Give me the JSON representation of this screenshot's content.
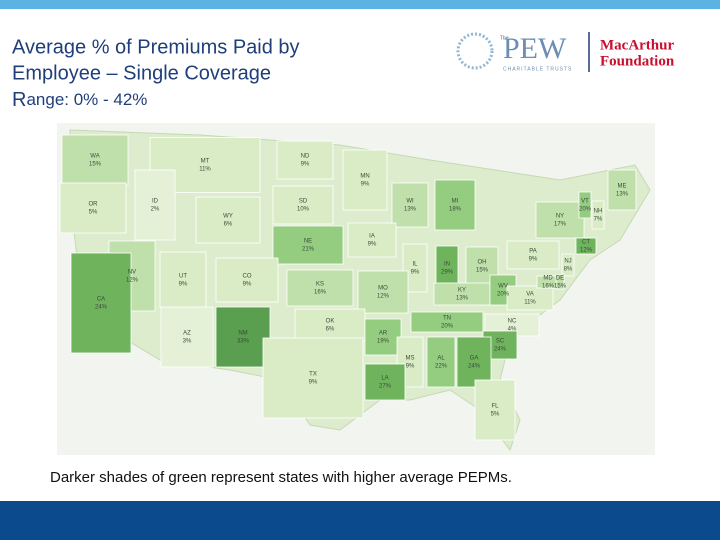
{
  "header": {
    "title_line1": "Average % of Premiums Paid by",
    "title_line2": "Employee – Single Coverage",
    "range_prefix": "R",
    "range_rest": "ange: ",
    "range_values": "0% - 42%",
    "logos": {
      "pew_small": "The",
      "pew": "PEW",
      "pew_sub": "CHARITABLE TRUSTS",
      "macarthur": "MacArthur",
      "foundation": "Foundation"
    }
  },
  "map": {
    "states": [
      {
        "abbr": "WA",
        "value": "15%",
        "color": "#bfe0ab"
      },
      {
        "abbr": "MT",
        "value": "11%",
        "color": "#d9ecc6"
      },
      {
        "abbr": "OR",
        "value": "5%",
        "color": "#d9ecc6"
      },
      {
        "abbr": "ID",
        "value": "2%",
        "color": "#e4f1d6"
      },
      {
        "abbr": "WY",
        "value": "6%",
        "color": "#d9ecc6"
      },
      {
        "abbr": "ND",
        "value": "9%",
        "color": "#d9ecc6"
      },
      {
        "abbr": "SD",
        "value": "10%",
        "color": "#d9ecc6"
      },
      {
        "abbr": "MN",
        "value": "9%",
        "color": "#d9ecc6"
      },
      {
        "abbr": "WI",
        "value": "13%",
        "color": "#bfe0ab"
      },
      {
        "abbr": "MI",
        "value": "18%",
        "color": "#94cc80"
      },
      {
        "abbr": "NE",
        "value": "21%",
        "color": "#94cc80"
      },
      {
        "abbr": "IA",
        "value": "9%",
        "color": "#d9ecc6"
      },
      {
        "abbr": "IL",
        "value": "9%",
        "color": "#d9ecc6"
      },
      {
        "abbr": "IN",
        "value": "29%",
        "color": "#6fb35d"
      },
      {
        "abbr": "OH",
        "value": "15%",
        "color": "#bfe0ab"
      },
      {
        "abbr": "NV",
        "value": "12%",
        "color": "#bfe0ab"
      },
      {
        "abbr": "UT",
        "value": "9%",
        "color": "#d9ecc6"
      },
      {
        "abbr": "CO",
        "value": "9%",
        "color": "#d9ecc6"
      },
      {
        "abbr": "KS",
        "value": "16%",
        "color": "#bfe0ab"
      },
      {
        "abbr": "MO",
        "value": "12%",
        "color": "#bfe0ab"
      },
      {
        "abbr": "KY",
        "value": "13%",
        "color": "#bfe0ab"
      },
      {
        "abbr": "WV",
        "value": "20%",
        "color": "#94cc80"
      },
      {
        "abbr": "VA",
        "value": "11%",
        "color": "#d9ecc6"
      },
      {
        "abbr": "PA",
        "value": "9%",
        "color": "#d9ecc6"
      },
      {
        "abbr": "NY",
        "value": "17%",
        "color": "#bfe0ab"
      },
      {
        "abbr": "VT",
        "value": "20%",
        "color": "#94cc80"
      },
      {
        "abbr": "NH",
        "value": "7%",
        "color": "#d9ecc6"
      },
      {
        "abbr": "ME",
        "value": "13%",
        "color": "#bfe0ab"
      },
      {
        "abbr": "CT",
        "value": "12%",
        "color": "#6fb35d"
      },
      {
        "abbr": "NJ",
        "value": "8%",
        "color": "#d9ecc6"
      },
      {
        "abbr": "MD",
        "value": "16%",
        "color": "#bfe0ab"
      },
      {
        "abbr": "DE",
        "value": "15%",
        "color": "#bfe0ab"
      },
      {
        "abbr": "CA",
        "value": "24%",
        "color": "#6fb35d"
      },
      {
        "abbr": "AZ",
        "value": "3%",
        "color": "#e4f1d6"
      },
      {
        "abbr": "NM",
        "value": "33%",
        "color": "#5a9e4f"
      },
      {
        "abbr": "OK",
        "value": "6%",
        "color": "#d9ecc6"
      },
      {
        "abbr": "TX",
        "value": "9%",
        "color": "#d9ecc6"
      },
      {
        "abbr": "AR",
        "value": "19%",
        "color": "#94cc80"
      },
      {
        "abbr": "TN",
        "value": "20%",
        "color": "#94cc80"
      },
      {
        "abbr": "NC",
        "value": "4%",
        "color": "#e4f1d6"
      },
      {
        "abbr": "SC",
        "value": "24%",
        "color": "#6fb35d"
      },
      {
        "abbr": "MS",
        "value": "9%",
        "color": "#d9ecc6"
      },
      {
        "abbr": "AL",
        "value": "22%",
        "color": "#94cc80"
      },
      {
        "abbr": "GA",
        "value": "24%",
        "color": "#6fb35d"
      },
      {
        "abbr": "LA",
        "value": "27%",
        "color": "#6fb35d"
      },
      {
        "abbr": "FL",
        "value": "5%",
        "color": "#d9ecc6"
      }
    ]
  },
  "caption": "Darker shades of green represent states with higher average PEPMs."
}
